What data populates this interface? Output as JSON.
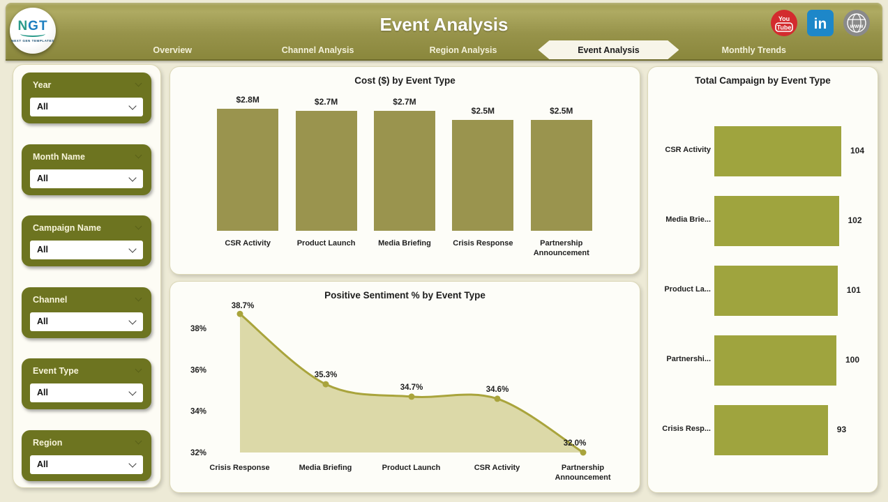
{
  "header": {
    "title": "Event Analysis",
    "logo": {
      "text": "NGT",
      "subtext": "NEXT GEN TEMPLATES"
    },
    "social_icons": [
      {
        "name": "youtube-icon",
        "line1": "You",
        "line2": "Tube"
      },
      {
        "name": "linkedin-icon",
        "label": "in"
      },
      {
        "name": "website-icon",
        "label": "www"
      }
    ]
  },
  "tabs": [
    {
      "label": "Overview",
      "active": false
    },
    {
      "label": "Channel Analysis",
      "active": false
    },
    {
      "label": "Region Analysis",
      "active": false
    },
    {
      "label": "Event Analysis",
      "active": true
    },
    {
      "label": "Monthly Trends",
      "active": false
    }
  ],
  "filters": [
    {
      "label": "Year",
      "value": "All"
    },
    {
      "label": "Month Name",
      "value": "All"
    },
    {
      "label": "Campaign Name",
      "value": "All"
    },
    {
      "label": "Channel",
      "value": "All"
    },
    {
      "label": "Event Type",
      "value": "All"
    },
    {
      "label": "Region",
      "value": "All"
    }
  ],
  "colors": {
    "page_bg": "#edead6",
    "header_olive": "#97934a",
    "filter_green": "#6d7420",
    "cost_bar": "#9a944e",
    "campaign_bar": "#9fa43e",
    "line": "#a9a43c",
    "area_fill": "#dcd9a8",
    "active_tab_bg": "#f7f5e9",
    "youtube_red": "#d32b2e",
    "linkedin_blue": "#1d87c9",
    "globe_gray": "#8a8a8a",
    "text_dark": "#1f1f1f"
  },
  "chart_data": [
    {
      "type": "bar",
      "title": "Cost ($) by Event Type",
      "categories": [
        "CSR Activity",
        "Product Launch",
        "Media Briefing",
        "Crisis Response",
        "Partnership Announcement"
      ],
      "values": [
        2.8,
        2.7,
        2.7,
        2.5,
        2.5
      ],
      "labels": [
        "$2.8M",
        "$2.7M",
        "$2.7M",
        "$2.5M",
        "$2.5M"
      ],
      "ylabel": "Cost ($)",
      "ylim": [
        0,
        2.8
      ],
      "grid": false,
      "legend": "none"
    },
    {
      "type": "area",
      "title": "Positive Sentiment % by Event Type",
      "categories": [
        "Crisis Response",
        "Media Briefing",
        "Product Launch",
        "CSR Activity",
        "Partnership Announcement"
      ],
      "values": [
        38.7,
        35.3,
        34.7,
        34.6,
        32.0
      ],
      "labels": [
        "38.7%",
        "35.3%",
        "34.7%",
        "34.6%",
        "32.0%"
      ],
      "yticks": [
        "38%",
        "36%",
        "34%",
        "32%"
      ],
      "ytick_values": [
        38,
        36,
        34,
        32
      ],
      "ylim": [
        32,
        39
      ],
      "grid": false,
      "legend": "none"
    },
    {
      "type": "bar-horizontal",
      "title": "Total Campaign by Event Type",
      "categories": [
        "CSR Activity",
        "Media Brie...",
        "Product La...",
        "Partnershi...",
        "Crisis Resp..."
      ],
      "values": [
        104,
        102,
        101,
        100,
        93
      ],
      "labels": [
        "104",
        "102",
        "101",
        "100",
        "93"
      ],
      "xlim": [
        0,
        104
      ],
      "grid": false,
      "legend": "none"
    }
  ]
}
